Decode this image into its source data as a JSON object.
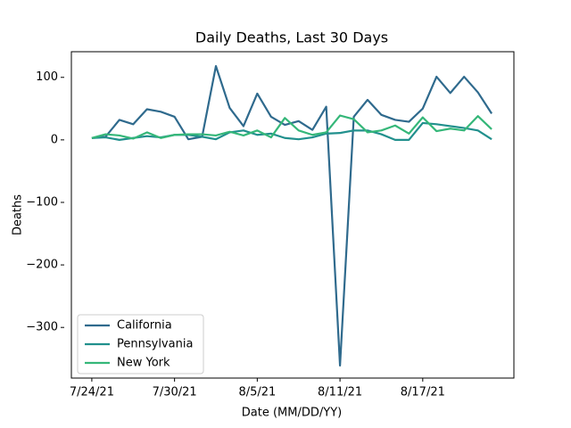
{
  "chart_data": {
    "type": "line",
    "title": "Daily Deaths, Last 30 Days",
    "xlabel": "Date (MM/DD/YY)",
    "ylabel": "Deaths",
    "x": [
      "7/24/21",
      "7/25/21",
      "7/26/21",
      "7/27/21",
      "7/28/21",
      "7/29/21",
      "7/30/21",
      "7/31/21",
      "8/1/21",
      "8/2/21",
      "8/3/21",
      "8/4/21",
      "8/5/21",
      "8/6/21",
      "8/7/21",
      "8/8/21",
      "8/9/21",
      "8/10/21",
      "8/11/21",
      "8/12/21",
      "8/13/21",
      "8/14/21",
      "8/15/21",
      "8/16/21",
      "8/17/21",
      "8/18/21",
      "8/19/21",
      "8/20/21",
      "8/21/21",
      "8/22/21"
    ],
    "series": [
      {
        "name": "California",
        "color": "#2f6a8d",
        "values": [
          3,
          5,
          32,
          25,
          49,
          45,
          37,
          1,
          5,
          118,
          51,
          22,
          74,
          37,
          24,
          30,
          16,
          53,
          -361,
          37,
          64,
          40,
          32,
          29,
          50,
          101,
          75,
          101,
          76,
          42
        ]
      },
      {
        "name": "Pennsylvania",
        "color": "#21908d",
        "values": [
          3,
          4,
          0,
          3,
          6,
          4,
          8,
          8,
          5,
          1,
          12,
          15,
          8,
          10,
          3,
          1,
          4,
          10,
          11,
          15,
          15,
          9,
          0,
          0,
          27,
          25,
          22,
          19,
          15,
          1
        ]
      },
      {
        "name": "New York",
        "color": "#35b779",
        "values": [
          3,
          9,
          7,
          2,
          12,
          3,
          8,
          9,
          9,
          7,
          13,
          7,
          15,
          4,
          35,
          15,
          8,
          12,
          39,
          33,
          12,
          15,
          23,
          10,
          36,
          14,
          18,
          15,
          38,
          17
        ]
      }
    ],
    "xlim": [
      "7/22/21",
      "8/24/21"
    ],
    "xticks": [
      "7/24/21",
      "7/30/21",
      "8/5/21",
      "8/11/21",
      "8/17/21"
    ],
    "ylim": [
      -381,
      141
    ],
    "yticks": [
      {
        "value": -300,
        "label": "−300"
      },
      {
        "value": -200,
        "label": "−200"
      },
      {
        "value": -100,
        "label": "−100"
      },
      0,
      100
    ],
    "legend": "lower left",
    "grid": false
  }
}
